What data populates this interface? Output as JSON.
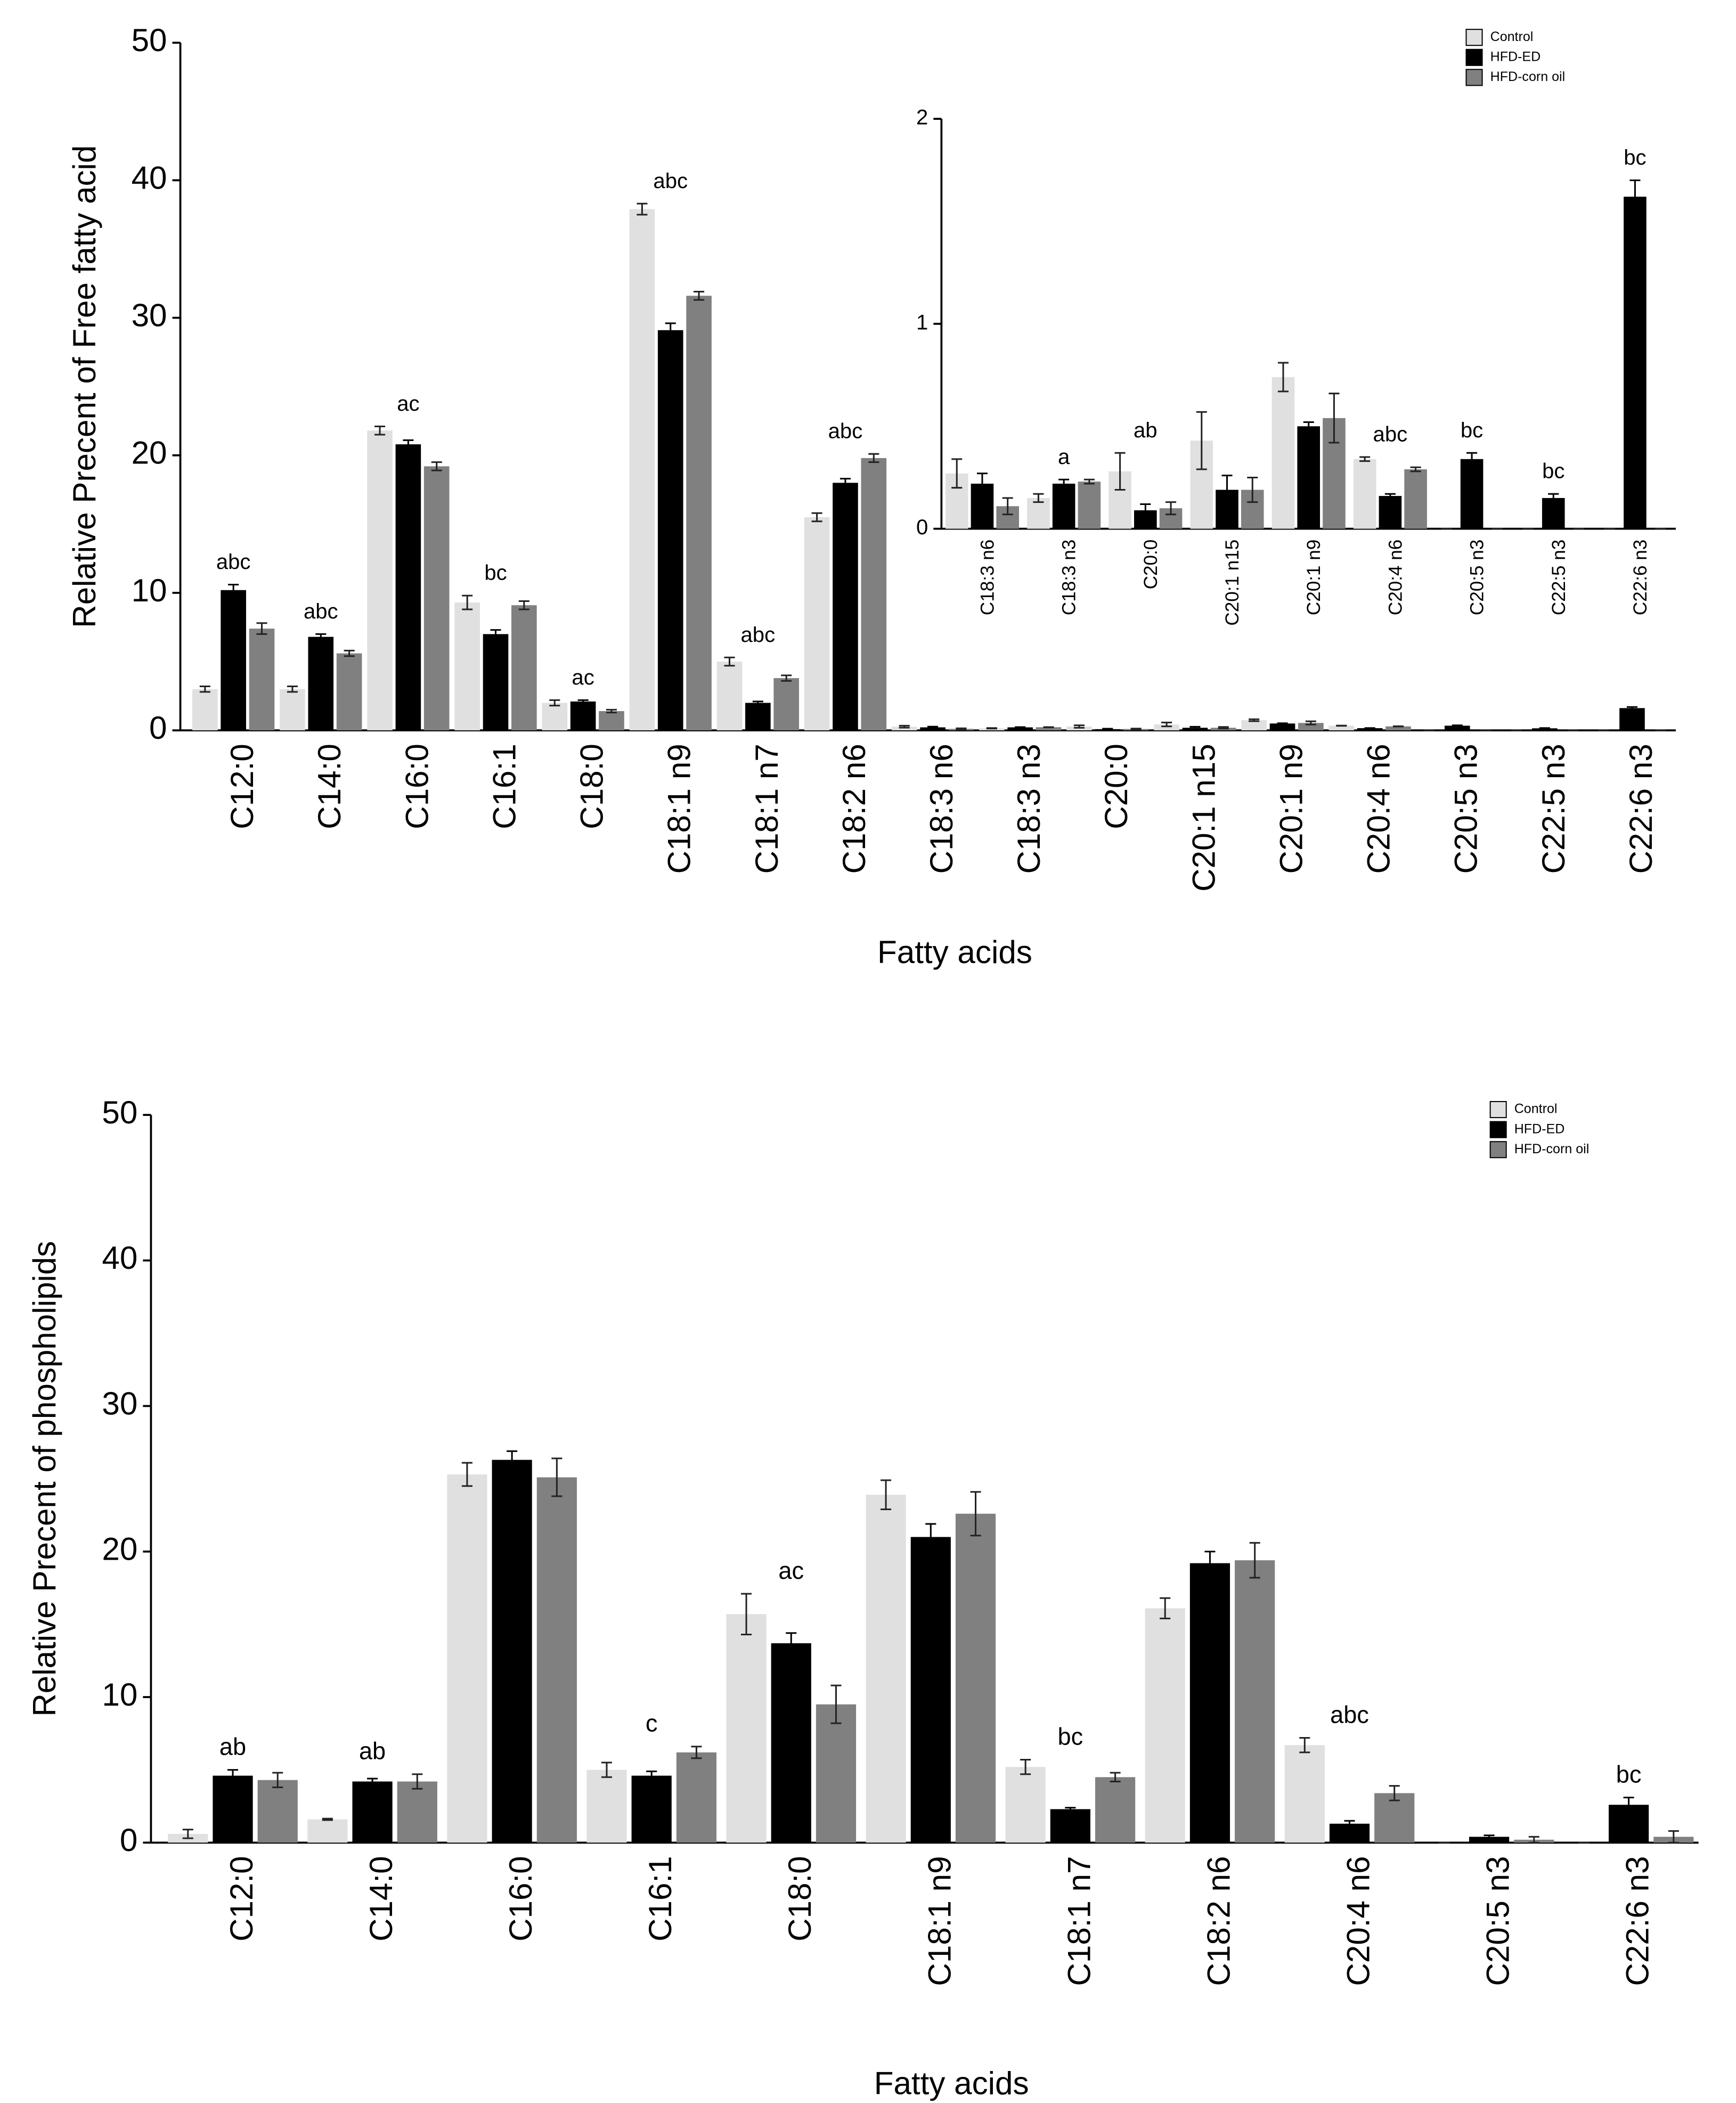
{
  "chart_data": [
    {
      "type": "bar",
      "ylabel": "Relative Precent of Free fatty acid",
      "xlabel": "Fatty acids",
      "categories": [
        "C12:0",
        "C14:0",
        "C16:0",
        "C16:1",
        "C18:0",
        "C18:1 n9",
        "C18:1 n7",
        "C18:2 n6",
        "C18:3 n6",
        "C18:3 n3",
        "C20:0",
        "C20:1 n15",
        "C20:1 n9",
        "C20:4 n6",
        "C20:5 n3",
        "C22:5 n3",
        "C22:6 n3"
      ],
      "annotations": [
        "abc",
        "abc",
        "ac",
        "bc",
        "ac",
        "abc",
        "abc",
        "abc",
        null,
        null,
        null,
        null,
        null,
        null,
        null,
        null,
        null
      ],
      "series": [
        {
          "name": "Control",
          "color": "#e0e0e0",
          "values": [
            3.0,
            3.0,
            21.8,
            9.3,
            2.0,
            37.9,
            5.0,
            15.5,
            0.27,
            0.15,
            0.28,
            0.43,
            0.74,
            0.34,
            0,
            0,
            0
          ],
          "errors": [
            0.2,
            0.2,
            0.3,
            0.5,
            0.2,
            0.4,
            0.3,
            0.3,
            0.07,
            0.02,
            0.09,
            0.14,
            0.07,
            0.01,
            0,
            0,
            0
          ]
        },
        {
          "name": "HFD-ED",
          "color": "#000000",
          "values": [
            10.2,
            6.8,
            20.8,
            7.0,
            2.1,
            29.1,
            2.0,
            18.0,
            0.22,
            0.22,
            0.09,
            0.19,
            0.5,
            0.16,
            0.34,
            0.15,
            1.62
          ],
          "errors": [
            0.4,
            0.2,
            0.3,
            0.3,
            0.1,
            0.5,
            0.1,
            0.3,
            0.05,
            0.02,
            0.03,
            0.07,
            0.02,
            0.01,
            0.03,
            0.02,
            0.08
          ]
        },
        {
          "name": "HFD-corn oil",
          "color": "#808080",
          "values": [
            7.4,
            5.6,
            19.2,
            9.1,
            1.4,
            31.6,
            3.8,
            19.8,
            0.11,
            0.23,
            0.1,
            0.19,
            0.54,
            0.29,
            0,
            0,
            0
          ],
          "errors": [
            0.4,
            0.2,
            0.3,
            0.3,
            0.1,
            0.3,
            0.2,
            0.3,
            0.04,
            0.01,
            0.03,
            0.06,
            0.12,
            0.01,
            0,
            0,
            0
          ]
        }
      ],
      "ylim": [
        0,
        50
      ],
      "yticks": [
        0,
        10,
        20,
        30,
        40,
        50
      ],
      "legend": "upper right"
    },
    {
      "type": "bar",
      "categories": [
        "C18:3 n6",
        "C18:3 n3",
        "C20:0",
        "C20:1 n15",
        "C20:1 n9",
        "C20:4 n6",
        "C20:5 n3",
        "C22:5 n3",
        "C22:6 n3"
      ],
      "annotations": [
        null,
        "a",
        "ab",
        null,
        null,
        "abc",
        "bc",
        "bc",
        "bc"
      ],
      "series": [
        {
          "color": "#e0e0e0",
          "values": [
            0.27,
            0.15,
            0.28,
            0.43,
            0.74,
            0.34,
            0,
            0,
            0
          ],
          "errors": [
            0.07,
            0.02,
            0.09,
            0.14,
            0.07,
            0.01,
            0,
            0,
            0
          ]
        },
        {
          "color": "#000000",
          "values": [
            0.22,
            0.22,
            0.09,
            0.19,
            0.5,
            0.16,
            0.34,
            0.15,
            1.62
          ],
          "errors": [
            0.05,
            0.02,
            0.03,
            0.07,
            0.02,
            0.01,
            0.03,
            0.02,
            0.08
          ]
        },
        {
          "color": "#808080",
          "values": [
            0.11,
            0.23,
            0.1,
            0.19,
            0.54,
            0.29,
            0,
            0,
            0
          ],
          "errors": [
            0.04,
            0.01,
            0.03,
            0.06,
            0.12,
            0.01,
            0,
            0,
            0
          ]
        }
      ],
      "ylim": [
        0,
        2
      ],
      "yticks": [
        0,
        1,
        2
      ]
    },
    {
      "type": "bar",
      "ylabel": "Relative Precent of phospholipids",
      "xlabel": "Fatty acids",
      "categories": [
        "C12:0",
        "C14:0",
        "C16:0",
        "C16:1",
        "C18:0",
        "C18:1 n9",
        "C18:1 n7",
        "C18:2 n6",
        "C20:4 n6",
        "C20:5 n3",
        "C22:6 n3"
      ],
      "annotations": [
        "ab",
        "ab",
        null,
        "c",
        "ac",
        null,
        "bc",
        null,
        "abc",
        null,
        "bc"
      ],
      "series": [
        {
          "name": "Control",
          "color": "#e0e0e0",
          "values": [
            0.6,
            1.6,
            25.3,
            5.0,
            15.7,
            23.9,
            5.2,
            16.1,
            6.7,
            0,
            0
          ],
          "errors": [
            0.3,
            0.05,
            0.8,
            0.5,
            1.4,
            1.0,
            0.5,
            0.7,
            0.5,
            0,
            0
          ]
        },
        {
          "name": "HFD-ED",
          "color": "#000000",
          "values": [
            4.6,
            4.2,
            26.3,
            4.6,
            13.7,
            21.0,
            2.3,
            19.2,
            1.3,
            0.4,
            2.6
          ],
          "errors": [
            0.4,
            0.2,
            0.6,
            0.3,
            0.7,
            0.9,
            0.1,
            0.8,
            0.2,
            0.1,
            0.5
          ]
        },
        {
          "name": "HFD-corn oil",
          "color": "#808080",
          "values": [
            4.3,
            4.2,
            25.1,
            6.2,
            9.5,
            22.6,
            4.5,
            19.4,
            3.4,
            0.2,
            0.4
          ],
          "errors": [
            0.5,
            0.5,
            1.3,
            0.4,
            1.3,
            1.5,
            0.3,
            1.2,
            0.5,
            0.2,
            0.4
          ]
        }
      ],
      "ylim": [
        0,
        50
      ],
      "yticks": [
        0,
        10,
        20,
        30,
        40,
        50
      ],
      "legend": "upper right"
    }
  ]
}
